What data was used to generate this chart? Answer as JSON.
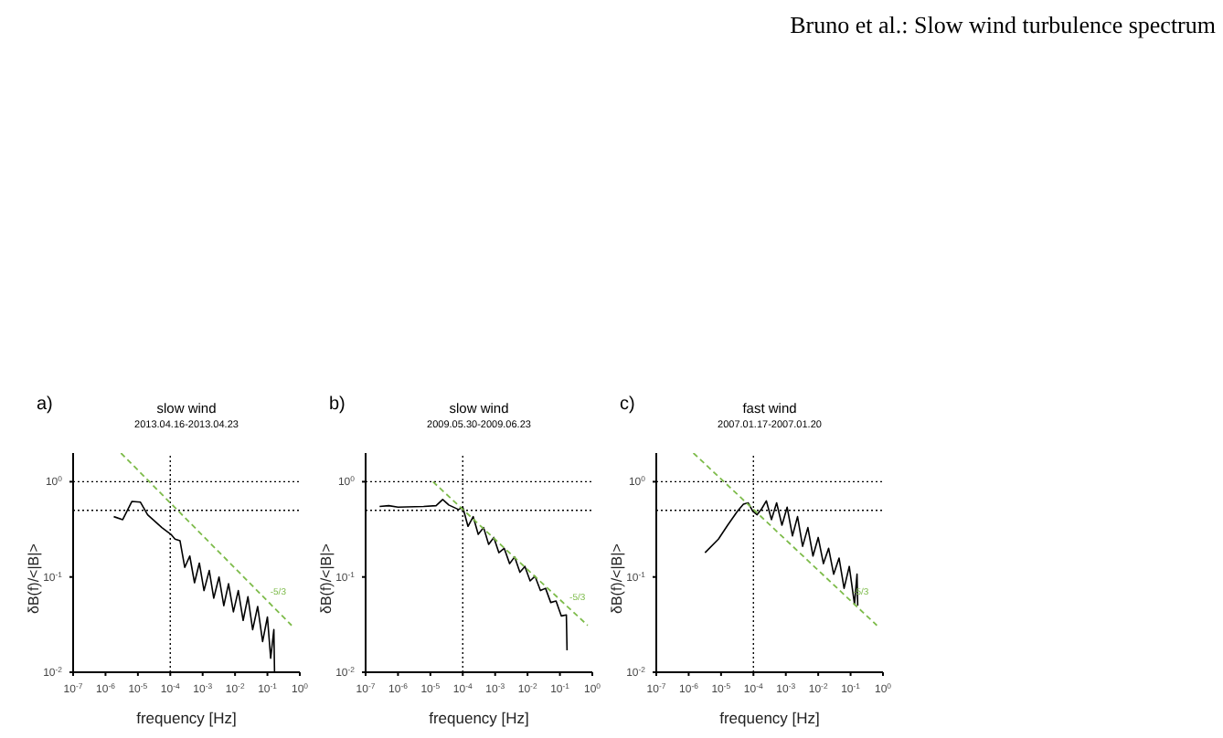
{
  "chart_data": [
    {
      "type": "line",
      "title": "slow wind",
      "subtitle": "2013.04.16-2013.04.23",
      "xlabel": "frequency [Hz]",
      "ylabel": "δB(f)/<|B|>",
      "annotations": [
        "a)",
        "Bruno et al.: Slow wind turbulence spectrum",
        "-5/3"
      ],
      "log": "xy",
      "grid": false,
      "legend": false,
      "marker": "none",
      "line_style": "solid",
      "xlim": [
        1e-07,
        1
      ],
      "xticks": [
        {
          "value": 1e-07,
          "label": "10$^{-7}$"
        },
        {
          "value": 1e-06,
          "label": "10$^{-6}$"
        },
        {
          "value": 1e-05,
          "label": "10$^{-5}$"
        },
        {
          "value": 0.0001,
          "label": "10$^{-4}$"
        },
        {
          "value": 0.001,
          "label": "10$^{-3}$"
        },
        {
          "value": 0.01,
          "label": "10$^{-2}$"
        },
        {
          "value": 0.1,
          "label": "10$^{-1}$"
        },
        {
          "value": 1,
          "label": "10$^{0}$"
        }
      ],
      "ylim": [
        0.01,
        2
      ],
      "yticks": [
        {
          "value": 0.01,
          "label": "10$^{-2}$"
        },
        {
          "value": 0.1,
          "label": "10$^{-1}$"
        },
        {
          "value": 1,
          "label": "10$^{0}$"
        }
      ],
      "ref_lines": [
        {
          "axis": "y",
          "value": 1,
          "color": "#000000",
          "line_style": "dotted"
        },
        {
          "axis": "y",
          "value": 0.5,
          "color": "#000000",
          "line_style": "dotted"
        },
        {
          "axis": "x",
          "value": 0.0001,
          "color": "#000000",
          "line_style": "dotted"
        }
      ],
      "series": [
        {
          "color": "#000000",
          "x": [
            1.8e-06,
            3.4e-06,
            6.5e-06,
            1.2e-05,
            2e-05,
            5.5e-05,
            0.000105,
            0.00014,
            0.0002,
            0.00028,
            0.0004,
            0.00056,
            0.00079,
            0.0011,
            0.0016,
            0.0022,
            0.0032,
            0.0045,
            0.0063,
            0.0089,
            0.0126,
            0.0178,
            0.025,
            0.035,
            0.05,
            0.071,
            0.1,
            0.126,
            0.158,
            0.166
          ],
          "values": [
            0.43,
            0.4,
            0.62,
            0.61,
            0.45,
            0.33,
            0.28,
            0.25,
            0.24,
            0.126,
            0.166,
            0.087,
            0.14,
            0.072,
            0.117,
            0.06,
            0.1,
            0.05,
            0.085,
            0.043,
            0.072,
            0.035,
            0.062,
            0.028,
            0.049,
            0.021,
            0.038,
            0.014,
            0.028,
            0.01
          ]
        },
        {
          "color": "#7dbb4a",
          "line_style": "dashed",
          "x": [
            3e-06,
            0.56
          ],
          "values": [
            2.0,
            0.031
          ]
        }
      ]
    },
    {
      "type": "line",
      "title": "slow wind",
      "subtitle": "2009.05.30-2009.06.23",
      "xlabel": "frequency [Hz]",
      "ylabel": "δB(f)/<|B|>",
      "annotations": [
        "b)",
        "-5/3"
      ],
      "log": "xy",
      "grid": false,
      "legend": false,
      "marker": "none",
      "line_style": "solid",
      "xlim": [
        1e-07,
        1
      ],
      "xticks": [
        {
          "value": 1e-07,
          "label": "10$^{-7}$"
        },
        {
          "value": 1e-06,
          "label": "10$^{-6}$"
        },
        {
          "value": 1e-05,
          "label": "10$^{-5}$"
        },
        {
          "value": 0.0001,
          "label": "10$^{-4}$"
        },
        {
          "value": 0.001,
          "label": "10$^{-3}$"
        },
        {
          "value": 0.01,
          "label": "10$^{-2}$"
        },
        {
          "value": 0.1,
          "label": "10$^{-1}$"
        },
        {
          "value": 1,
          "label": "10$^{0}$"
        }
      ],
      "ylim": [
        0.01,
        2
      ],
      "yticks": [
        {
          "value": 0.01,
          "label": "10$^{-2}$"
        },
        {
          "value": 0.1,
          "label": "10$^{-1}$"
        },
        {
          "value": 1,
          "label": "10$^{0}$"
        }
      ],
      "ref_lines": [
        {
          "axis": "y",
          "value": 1,
          "color": "#000000",
          "line_style": "dotted"
        },
        {
          "axis": "y",
          "value": 0.5,
          "color": "#000000",
          "line_style": "dotted"
        },
        {
          "axis": "x",
          "value": 0.0001,
          "color": "#000000",
          "line_style": "dotted"
        }
      ],
      "series": [
        {
          "color": "#000000",
          "x": [
            2.7e-07,
            5.2e-07,
            1e-06,
            6.2e-06,
            1.5e-05,
            2.4e-05,
            3.7e-05,
            7.4e-05,
            0.0001,
            0.000145,
            0.00021,
            0.0003,
            0.00044,
            0.00063,
            0.00091,
            0.0013,
            0.0019,
            0.0028,
            0.004,
            0.0058,
            0.0083,
            0.012,
            0.017,
            0.025,
            0.036,
            0.052,
            0.076,
            0.11,
            0.158,
            0.166
          ],
          "values": [
            0.55,
            0.56,
            0.54,
            0.55,
            0.56,
            0.65,
            0.57,
            0.51,
            0.54,
            0.34,
            0.43,
            0.28,
            0.33,
            0.22,
            0.26,
            0.18,
            0.2,
            0.138,
            0.162,
            0.112,
            0.129,
            0.091,
            0.102,
            0.072,
            0.076,
            0.054,
            0.056,
            0.039,
            0.04,
            0.017
          ]
        },
        {
          "color": "#7dbb4a",
          "line_style": "dashed",
          "x": [
            1.2e-05,
            0.72
          ],
          "values": [
            1.0,
            0.031
          ]
        }
      ]
    },
    {
      "type": "line",
      "title": "fast wind",
      "subtitle": "2007.01.17-2007.01.20",
      "xlabel": "frequency [Hz]",
      "ylabel": "δB(f)/<|B|>",
      "annotations": [
        "c)",
        "-5/3"
      ],
      "log": "xy",
      "grid": false,
      "legend": false,
      "marker": "none",
      "line_style": "solid",
      "xlim": [
        1e-07,
        1
      ],
      "xticks": [
        {
          "value": 1e-07,
          "label": "10$^{-7}$"
        },
        {
          "value": 1e-06,
          "label": "10$^{-6}$"
        },
        {
          "value": 1e-05,
          "label": "10$^{-5}$"
        },
        {
          "value": 0.0001,
          "label": "10$^{-4}$"
        },
        {
          "value": 0.001,
          "label": "10$^{-3}$"
        },
        {
          "value": 0.01,
          "label": "10$^{-2}$"
        },
        {
          "value": 0.1,
          "label": "10$^{-1}$"
        },
        {
          "value": 1,
          "label": "10$^{0}$"
        }
      ],
      "ylim": [
        0.01,
        2
      ],
      "yticks": [
        {
          "value": 0.01,
          "label": "10$^{-2}$"
        },
        {
          "value": 0.1,
          "label": "10$^{-1}$"
        },
        {
          "value": 1,
          "label": "10$^{0}$"
        }
      ],
      "ref_lines": [
        {
          "axis": "y",
          "value": 0.5,
          "color": "#000000",
          "line_style": "dotted"
        },
        {
          "axis": "y",
          "value": 1,
          "color": "#000000",
          "line_style": "dotted"
        },
        {
          "axis": "x",
          "value": 0.0001,
          "color": "#000000",
          "line_style": "dotted"
        }
      ],
      "series": [
        {
          "color": "#000000",
          "x": [
            3.2e-06,
            8.3e-06,
            1.6e-05,
            3.2e-05,
            4.9e-05,
            6.9e-05,
            9.5e-05,
            0.00013,
            0.00018,
            0.00025,
            0.00036,
            0.00052,
            0.00076,
            0.0011,
            0.0016,
            0.0023,
            0.0033,
            0.0048,
            0.0069,
            0.01,
            0.0145,
            0.021,
            0.03,
            0.044,
            0.063,
            0.091,
            0.132,
            0.158,
            0.166
          ],
          "values": [
            0.18,
            0.25,
            0.35,
            0.49,
            0.58,
            0.6,
            0.49,
            0.45,
            0.52,
            0.63,
            0.4,
            0.6,
            0.35,
            0.54,
            0.27,
            0.43,
            0.21,
            0.33,
            0.166,
            0.26,
            0.138,
            0.2,
            0.107,
            0.158,
            0.076,
            0.129,
            0.052,
            0.107,
            0.05
          ]
        },
        {
          "color": "#7dbb4a",
          "line_style": "dashed",
          "x": [
            1.4e-06,
            0.65
          ],
          "values": [
            2.0,
            0.031
          ]
        }
      ]
    }
  ]
}
